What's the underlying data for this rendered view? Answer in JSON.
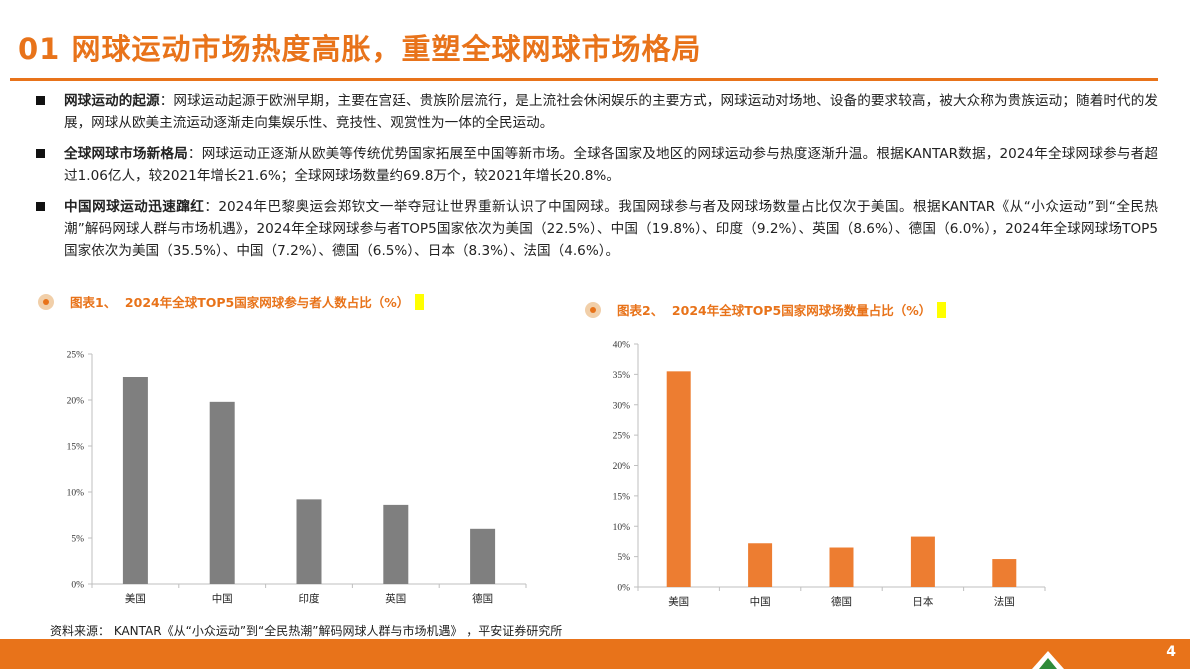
{
  "page": {
    "title": "01 网球运动市场热度高胀，重塑全球网球市场格局",
    "page_number": "4",
    "source": "资料来源： KANTAR《从“小众运动”到“全民热潮”解码网球人群与市场机遇》 ，平安证券研究所"
  },
  "bullets": [
    {
      "heading": "网球运动的起源",
      "text": "：网球运动起源于欧洲早期，主要在宫廷、贵族阶层流行，是上流社会休闲娱乐的主要方式，网球运动对场地、设备的要求较高，被大众称为贵族运动；随着时代的发展，网球从欧美主流运动逐渐走向集娱乐性、竞技性、观赏性为一体的全民运动。"
    },
    {
      "heading": "全球网球市场新格局",
      "text": "：网球运动正逐渐从欧美等传统优势国家拓展至中国等新市场。全球各国家及地区的网球运动参与热度逐渐升温。根据KANTAR数据，2024年全球网球参与者超过1.06亿人，较2021年增长21.6%；全球网球场数量约69.8万个，较2021年增长20.8%。"
    },
    {
      "heading": "中国网球运动迅速蹿红",
      "text": "：2024年巴黎奥运会郑钦文一举夺冠让世界重新认识了中国网球。我国网球参与者及网球场数量占比仅次于美国。根据KANTAR《从“小众运动”到“全民热潮”解码网球人群与市场机遇》，2024年全球网球参与者TOP5国家依次为美国（22.5%）、中国（19.8%）、印度（9.2%）、英国（8.6%）、德国（6.0%），2024年全球网球场TOP5国家依次为美国（35.5%）、中国（7.2%）、德国（6.5%）、日本（8.3%）、法国（4.6%）。"
    }
  ],
  "figures": [
    {
      "label": "图表1、",
      "title": "2024年全球TOP5国家网球参与者人数占比（%）"
    },
    {
      "label": "图表2、",
      "title": "2024年全球TOP5国家网球场数量占比（%）"
    }
  ],
  "colors": {
    "accent": "#e8731a",
    "bar1": "#7f7f7f",
    "bar2": "#ed7d31",
    "highlight": "#ffff00"
  },
  "chart_data": [
    {
      "type": "bar",
      "categories": [
        "美国",
        "中国",
        "印度",
        "英国",
        "德国"
      ],
      "values": [
        22.5,
        19.8,
        9.2,
        8.6,
        6.0
      ],
      "title": "2024年全球TOP5国家网球参与者人数占比（%）",
      "ylim": [
        0,
        25
      ],
      "yticks": [
        "0%",
        "5%",
        "10%",
        "15%",
        "20%",
        "25%"
      ],
      "grid": false
    },
    {
      "type": "bar",
      "categories": [
        "美国",
        "中国",
        "德国",
        "日本",
        "法国"
      ],
      "values": [
        35.5,
        7.2,
        6.5,
        8.3,
        4.6
      ],
      "title": "2024年全球TOP5国家网球场数量占比（%）",
      "ylim": [
        0,
        40
      ],
      "yticks": [
        "0%",
        "5%",
        "10%",
        "15%",
        "20%",
        "25%",
        "30%",
        "35%",
        "40%"
      ],
      "grid": false
    }
  ]
}
